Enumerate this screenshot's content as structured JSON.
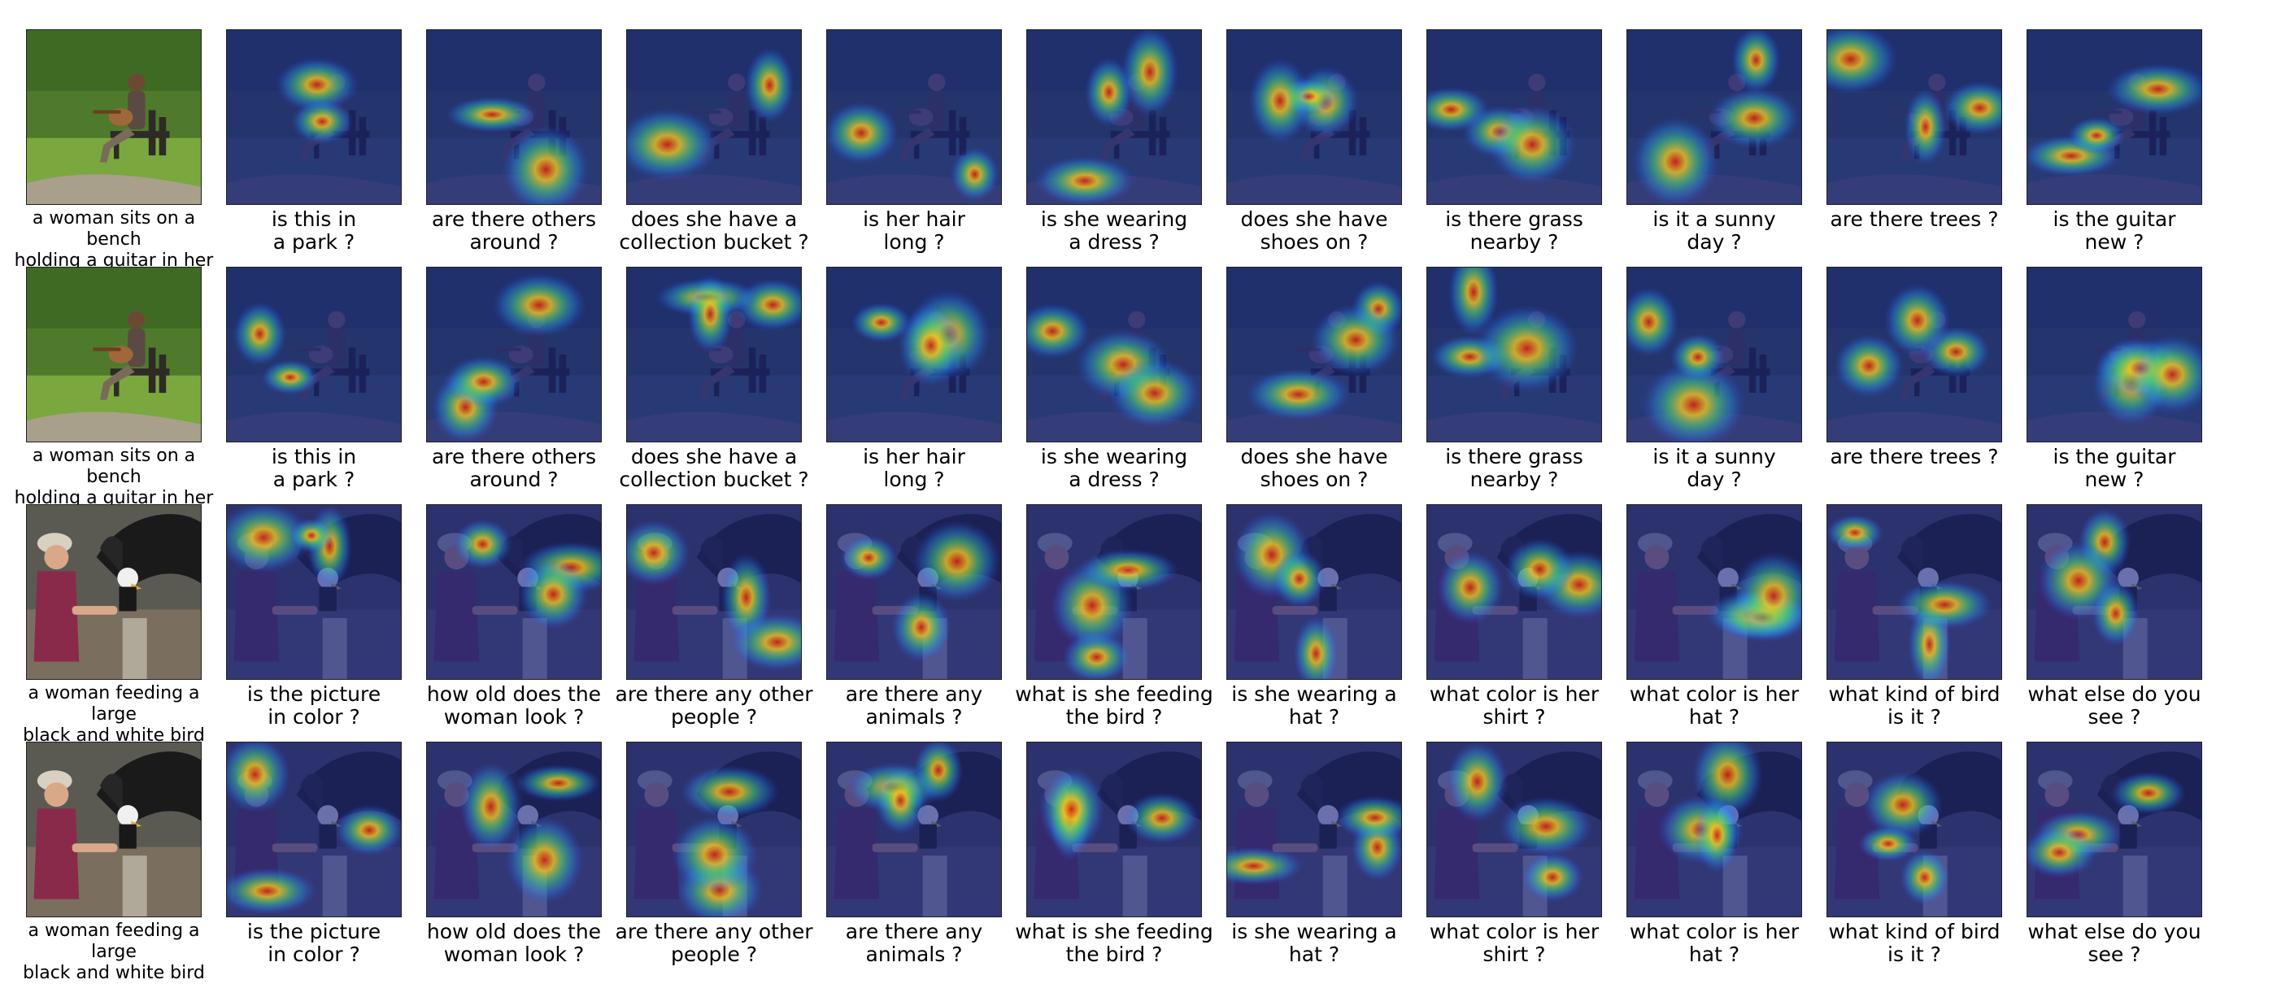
{
  "colors": {
    "park_background": "#4f7a2c",
    "bird_background": "#5b5a52",
    "heat_overlay": "#1c2a86"
  },
  "rows": [
    {
      "scene": "park",
      "caption": "a woman sits on a bench\nholding a guitar in her lap",
      "questions": [
        "is this in\na park ?",
        "are there others\naround ?",
        "does she have a\ncollection bucket ?",
        "is her hair\nlong ?",
        "is she wearing\na dress ?",
        "does she have\nshoes on ?",
        "is there grass\nnearby ?",
        "is it a sunny\nday ?",
        "are there trees ?",
        "is the guitar\nnew ?"
      ]
    },
    {
      "scene": "park",
      "caption": "a woman sits on a bench\nholding a guitar in her lap",
      "questions": [
        "is this in\na park ?",
        "are there others\naround ?",
        "does she have a\ncollection bucket ?",
        "is her hair\nlong ?",
        "is she wearing\na dress ?",
        "does she have\nshoes on ?",
        "is there grass\nnearby ?",
        "is it a sunny\nday ?",
        "are there trees ?",
        "is the guitar\nnew ?"
      ]
    },
    {
      "scene": "bird",
      "caption": "a woman feeding a large\nblack and white bird",
      "questions": [
        "is the picture\nin color ?",
        "how old does the\nwoman look ?",
        "are there any other\npeople ?",
        "are there any\nanimals ?",
        "what is she feeding\nthe bird ?",
        "is she wearing a\nhat ?",
        "what color is her\nshirt ?",
        "what color is her\nhat ?",
        "what kind of bird\nis it ?",
        "what else do you\nsee ?"
      ]
    },
    {
      "scene": "bird",
      "caption": "a woman feeding a large\nblack and white bird",
      "questions": [
        "is the picture\nin color ?",
        "how old does the\nwoman look ?",
        "are there any other\npeople ?",
        "are there any\nanimals ?",
        "what is she feeding\nthe bird ?",
        "is she wearing a\nhat ?",
        "what color is her\nshirt ?",
        "what color is her\nhat ?",
        "what kind of bird\nis it ?",
        "what else do you\nsee ?"
      ]
    }
  ]
}
